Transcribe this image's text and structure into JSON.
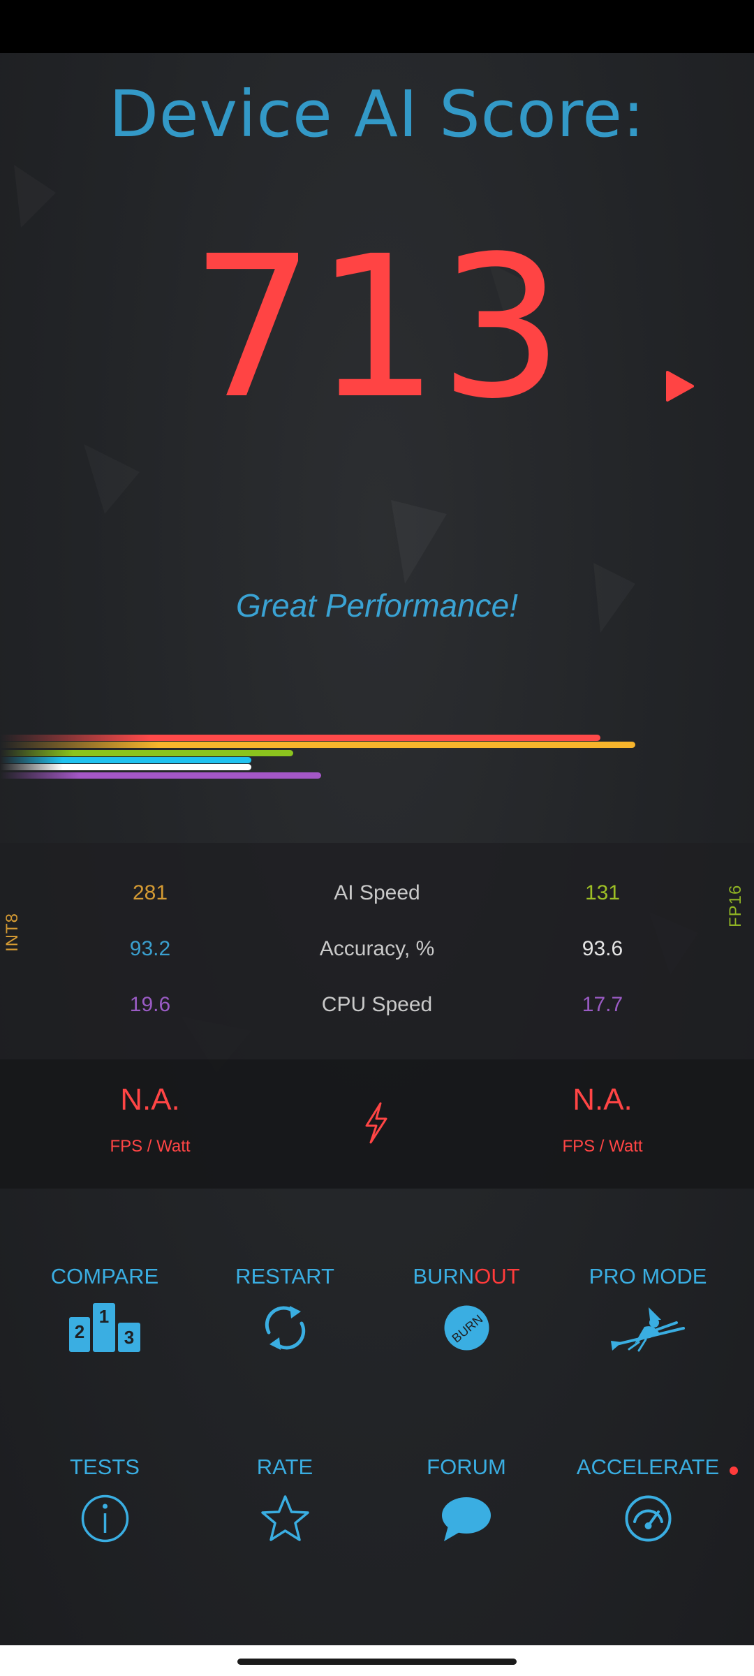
{
  "header": {
    "title": "Device AI Score:"
  },
  "score": {
    "value": "713",
    "rating": "Great Performance!"
  },
  "bars": [
    {
      "color": "#ff4a4a",
      "fraction": 0.86
    },
    {
      "color": "#f7b52c",
      "fraction": 0.91
    },
    {
      "color": "#8bc41e",
      "fraction": 0.42
    },
    {
      "color": "#1fc2f0",
      "fraction": 0.36
    },
    {
      "color": "#ffffff",
      "fraction": 0.36
    },
    {
      "color": "#a457c7",
      "fraction": 0.46
    }
  ],
  "stats": {
    "int8_label": "INT8",
    "fp16_label": "FP16",
    "rows": [
      {
        "left": "281",
        "label": "AI Speed",
        "right": "131",
        "left_color": "#d49a33",
        "right_color": "#9dbf25"
      },
      {
        "left": "93.2",
        "label": "Accuracy, %",
        "right": "93.6",
        "left_color": "#3a9fce",
        "right_color": "#e6e6e6"
      },
      {
        "left": "19.6",
        "label": "CPU Speed",
        "right": "17.7",
        "left_color": "#9a5bc4",
        "right_color": "#9a5bc4"
      }
    ]
  },
  "power": {
    "left_value": "N.A.",
    "left_unit": "FPS / Watt",
    "right_value": "N.A.",
    "right_unit": "FPS / Watt",
    "icon": "lightning-icon"
  },
  "actions": {
    "compare": {
      "label": "COMPARE",
      "icon": "podium-icon"
    },
    "restart": {
      "label": "RESTART",
      "icon": "refresh-icon"
    },
    "burnout": {
      "label_a": "BURN",
      "label_b": "OUT",
      "icon": "burn-icon",
      "icon_text": "BURN"
    },
    "pro_mode": {
      "label": "PRO MODE",
      "icon": "witch-icon"
    },
    "tests": {
      "label": "TESTS",
      "icon": "info-icon"
    },
    "rate": {
      "label": "RATE",
      "icon": "star-icon"
    },
    "forum": {
      "label": "FORUM",
      "icon": "chat-bubble-icon"
    },
    "accelerate": {
      "label": "ACCELERATE",
      "icon": "gauge-icon"
    }
  },
  "podium": {
    "first": "1",
    "second": "2",
    "third": "3"
  },
  "colors": {
    "accent": "#3aaee2",
    "score": "#ff4444",
    "background": "#222427"
  }
}
